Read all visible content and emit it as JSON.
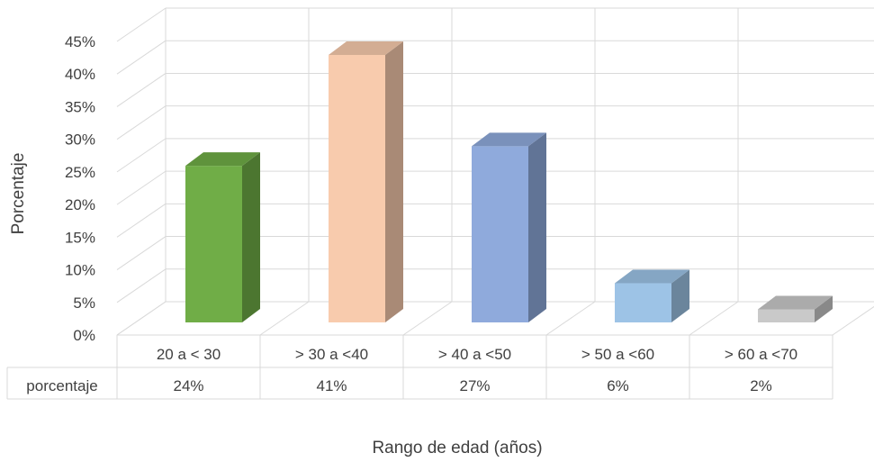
{
  "chart_data": {
    "type": "bar",
    "title": "",
    "ylabel": "Porcentaje",
    "xlabel": "Rango de edad (años)",
    "ylim": [
      0,
      45
    ],
    "yticks": [
      "0%",
      "5%",
      "10%",
      "15%",
      "20%",
      "25%",
      "30%",
      "35%",
      "40%",
      "45%"
    ],
    "grid": true,
    "categories": [
      "20 a < 30",
      "> 30 a <40",
      "> 40 a <50",
      "> 50 a <60",
      "> 60 a <70"
    ],
    "series": [
      {
        "name": "porcentaje",
        "values": [
          24,
          41,
          27,
          6,
          2
        ],
        "labels": [
          "24%",
          "41%",
          "27%",
          "6%",
          "2%"
        ]
      }
    ],
    "bar_colors": [
      "#70ad47",
      "#f8cbad",
      "#8faadc",
      "#9dc3e6",
      "#c9c9c9"
    ],
    "data_table": {
      "row_header": "porcentaje"
    }
  }
}
